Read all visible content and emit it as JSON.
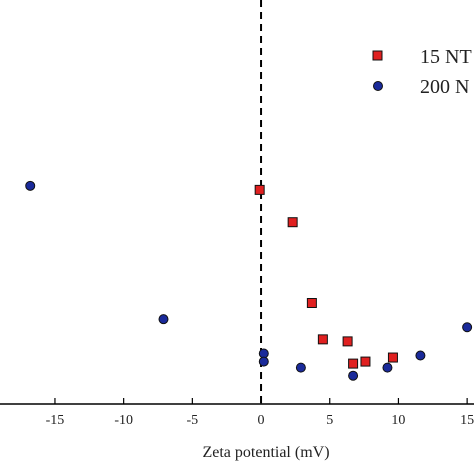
{
  "chart_data": {
    "type": "scatter",
    "xlabel": "Zeta potential (mV)",
    "xlim": [
      -19,
      15.5
    ],
    "ylim": [
      0,
      10
    ],
    "xticks": [
      -15,
      -10,
      -5,
      0,
      5,
      10,
      15
    ],
    "xtick_labels": [
      "-15",
      "-10",
      "-5",
      "0",
      "5",
      "10",
      "15"
    ],
    "grid": false,
    "legend_position": "top-right",
    "zero_line": {
      "x": 0,
      "style": "dashed"
    },
    "series": [
      {
        "name": "15 NT",
        "marker": "square",
        "color": "#e02020",
        "points": [
          {
            "x": -0.1,
            "y": 5.3
          },
          {
            "x": 2.3,
            "y": 4.5
          },
          {
            "x": 3.7,
            "y": 2.5
          },
          {
            "x": 4.5,
            "y": 1.6
          },
          {
            "x": 6.3,
            "y": 1.55
          },
          {
            "x": 6.7,
            "y": 1.0
          },
          {
            "x": 7.6,
            "y": 1.05
          },
          {
            "x": 9.6,
            "y": 1.15
          }
        ]
      },
      {
        "name": "200 N",
        "marker": "circle",
        "color": "#1a2a9a",
        "points": [
          {
            "x": -16.8,
            "y": 5.4
          },
          {
            "x": -7.1,
            "y": 2.1
          },
          {
            "x": 0.2,
            "y": 1.25
          },
          {
            "x": 0.2,
            "y": 1.05
          },
          {
            "x": 2.9,
            "y": 0.9
          },
          {
            "x": 6.7,
            "y": 0.7
          },
          {
            "x": 9.2,
            "y": 0.9
          },
          {
            "x": 11.6,
            "y": 1.2
          },
          {
            "x": 15.0,
            "y": 1.9
          }
        ]
      }
    ]
  }
}
